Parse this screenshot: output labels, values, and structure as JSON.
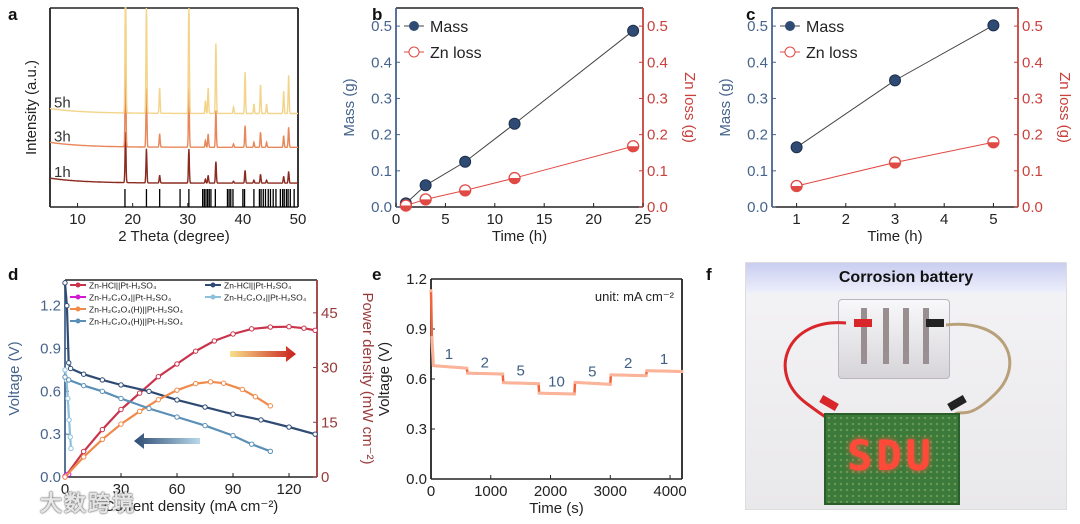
{
  "panel_labels": [
    "a",
    "b",
    "c",
    "d",
    "e",
    "f"
  ],
  "watermark": "大数跨境",
  "colors": {
    "navy": "#2f4b73",
    "axis_blue": "#46648c",
    "axis_red": "#c8413c",
    "red_series": "#e04a44",
    "xrd_1h": "#8b2a1f",
    "xrd_3h": "#e8875a",
    "xrd_5h": "#f3d48a",
    "power_red": "#c9344c",
    "power_orange": "#f08a4b",
    "light_blue": "#8cc0dc",
    "steel_blue": "#5a8fb8",
    "magenta": "#d21ad2",
    "step_orange": "#f0643c"
  },
  "chart_data": [
    {
      "id": "a",
      "type": "line",
      "xlabel": "2 Theta (degree)",
      "ylabel": "Intensity (a.u.)",
      "xlim": [
        5,
        50
      ],
      "ylim": [
        0,
        100
      ],
      "xticks": [
        10,
        20,
        30,
        40,
        50
      ],
      "series": [
        {
          "name": "1h",
          "offset": 12,
          "scale": 0.35
        },
        {
          "name": "3h",
          "offset": 30,
          "scale": 0.6
        },
        {
          "name": "5h",
          "offset": 47,
          "scale": 1.0
        }
      ],
      "peaks": [
        [
          18.7,
          52
        ],
        [
          22.5,
          35
        ],
        [
          24.9,
          8
        ],
        [
          30.2,
          35
        ],
        [
          33.2,
          4
        ],
        [
          33.7,
          8
        ],
        [
          35.1,
          22
        ],
        [
          38.3,
          2
        ],
        [
          40.4,
          13
        ],
        [
          42.0,
          3
        ],
        [
          43.2,
          9
        ],
        [
          44.3,
          3
        ],
        [
          47.4,
          7
        ],
        [
          48.3,
          12
        ]
      ],
      "reference_lines": [
        18.6,
        22.5,
        24.9,
        28.6,
        30.2,
        32.7,
        33.0,
        33.3,
        33.6,
        33.9,
        34.2,
        35.0,
        37.2,
        37.5,
        37.8,
        38.2,
        40.0,
        40.3,
        42.0,
        43.0,
        43.3,
        43.7,
        44.1,
        44.6,
        45.0,
        45.5,
        46.0,
        46.8,
        47.2,
        47.5,
        47.9,
        48.2,
        48.6,
        49.3
      ]
    },
    {
      "id": "b",
      "type": "line",
      "xlabel": "Time (h)",
      "ylabel": "Mass (g)",
      "y2label": "Zn loss (g)",
      "xlim": [
        0,
        25
      ],
      "ylim": [
        0,
        0.55
      ],
      "y2lim": [
        0,
        0.55
      ],
      "xticks": [
        0,
        5,
        10,
        15,
        20,
        25
      ],
      "yticks": [
        0.0,
        0.1,
        0.2,
        0.3,
        0.4,
        0.5
      ],
      "legend": "top-left",
      "x": [
        1,
        3,
        7,
        12,
        24
      ],
      "series": [
        {
          "name": "Mass",
          "values": [
            0.01,
            0.06,
            0.125,
            0.23,
            0.487
          ],
          "axis": "left"
        },
        {
          "name": "Zn loss",
          "values": [
            0.004,
            0.021,
            0.046,
            0.08,
            0.168
          ],
          "axis": "right"
        }
      ]
    },
    {
      "id": "c",
      "type": "line",
      "xlabel": "Time (h)",
      "ylabel": "Mass (g)",
      "y2label": "Zn loss (g)",
      "xlim": [
        0.5,
        5.5
      ],
      "ylim": [
        0,
        0.55
      ],
      "y2lim": [
        0,
        0.55
      ],
      "xticks": [
        1,
        2,
        3,
        4,
        5
      ],
      "yticks": [
        0.0,
        0.1,
        0.2,
        0.3,
        0.4,
        0.5
      ],
      "legend": "top-left",
      "x": [
        1,
        3,
        5
      ],
      "series": [
        {
          "name": "Mass",
          "values": [
            0.165,
            0.35,
            0.502
          ],
          "axis": "left"
        },
        {
          "name": "Zn loss",
          "values": [
            0.058,
            0.123,
            0.179
          ],
          "axis": "right"
        }
      ]
    },
    {
      "id": "d",
      "type": "line",
      "xlabel": "Current density (mA cm⁻²)",
      "ylabel": "Voltage (V)",
      "y2label": "Power density (mW cm⁻²)",
      "xlim": [
        0,
        135
      ],
      "ylim": [
        0,
        1.38
      ],
      "y2lim": [
        0,
        54
      ],
      "xticks": [
        0,
        30,
        60,
        90,
        120
      ],
      "yticks": [
        0.0,
        0.3,
        0.6,
        0.9,
        1.2
      ],
      "y2ticks": [
        0,
        15,
        30,
        45
      ],
      "legend": "top",
      "series": [
        {
          "name": "Zn-HCl||Pt-H₂SO₄",
          "axis": "right",
          "color_key": "power_red",
          "points": [
            [
              0,
              0
            ],
            [
              10,
              7
            ],
            [
              20,
              13
            ],
            [
              30,
              18.5
            ],
            [
              40,
              23
            ],
            [
              50,
              27.5
            ],
            [
              60,
              31
            ],
            [
              70,
              34.5
            ],
            [
              80,
              37.3
            ],
            [
              90,
              39.2
            ],
            [
              100,
              40.6
            ],
            [
              110,
              41.1
            ],
            [
              120,
              41.2
            ],
            [
              128,
              40.8
            ],
            [
              134,
              40.2
            ]
          ]
        },
        {
          "name": "Zn-HCl||Pt-H₂SO₄",
          "axis": "left",
          "color_key": "navy",
          "points": [
            [
              0,
              1.36
            ],
            [
              1,
              1.2
            ],
            [
              2,
              0.8
            ],
            [
              3,
              0.76
            ],
            [
              10,
              0.72
            ],
            [
              20,
              0.68
            ],
            [
              30,
              0.645
            ],
            [
              45,
              0.6
            ],
            [
              60,
              0.54
            ],
            [
              75,
              0.49
            ],
            [
              90,
              0.44
            ],
            [
              105,
              0.4
            ],
            [
              120,
              0.35
            ],
            [
              134,
              0.3
            ]
          ]
        },
        {
          "name": "Zn-H₂C₂O₄||Pt-H₂SO₄",
          "axis": "right",
          "color_key": "magenta",
          "points": [
            [
              0,
              0.2
            ],
            [
              1,
              0.6
            ],
            [
              2,
              0.8
            ]
          ]
        },
        {
          "name": "Zn-H₂C₂O₄||Pt-H₂SO₄",
          "axis": "left",
          "color_key": "light_blue",
          "points": [
            [
              0,
              0.75
            ],
            [
              0.8,
              0.68
            ],
            [
              1.5,
              0.55
            ],
            [
              2.2,
              0.4
            ],
            [
              2.8,
              0.28
            ],
            [
              3.2,
              0.2
            ]
          ]
        },
        {
          "name": "Zn-H₂C₂O₄(H)||Pt-H₂SO₄",
          "axis": "right",
          "color_key": "power_orange",
          "points": [
            [
              0,
              0
            ],
            [
              10,
              5.5
            ],
            [
              20,
              10.3
            ],
            [
              30,
              14.5
            ],
            [
              40,
              18
            ],
            [
              50,
              21.2
            ],
            [
              60,
              23.8
            ],
            [
              70,
              25.6
            ],
            [
              78,
              26.1
            ],
            [
              85,
              25.7
            ],
            [
              95,
              24
            ],
            [
              102,
              22
            ],
            [
              110,
              19.5
            ]
          ]
        },
        {
          "name": "Zn-H₂C₂O₄(H)||Pt-H₂SO₄",
          "axis": "left",
          "color_key": "steel_blue",
          "points": [
            [
              0,
              0.7
            ],
            [
              2,
              0.68
            ],
            [
              10,
              0.64
            ],
            [
              20,
              0.6
            ],
            [
              30,
              0.55
            ],
            [
              45,
              0.48
            ],
            [
              60,
              0.42
            ],
            [
              75,
              0.36
            ],
            [
              90,
              0.29
            ],
            [
              100,
              0.23
            ],
            [
              110,
              0.18
            ]
          ]
        }
      ]
    },
    {
      "id": "e",
      "type": "line",
      "xlabel": "Time (s)",
      "ylabel": "Voltage (V)",
      "xlim": [
        0,
        4200
      ],
      "ylim": [
        0,
        1.2
      ],
      "xticks": [
        0,
        1000,
        2000,
        3000,
        4000
      ],
      "yticks": [
        0.0,
        0.3,
        0.6,
        0.9,
        1.2
      ],
      "annotation": "unit: mA cm⁻²",
      "points": [
        [
          0,
          1.13
        ],
        [
          15,
          0.85
        ],
        [
          40,
          0.68
        ],
        [
          600,
          0.665
        ],
        [
          610,
          0.635
        ],
        [
          1200,
          0.63
        ],
        [
          1210,
          0.578
        ],
        [
          1800,
          0.572
        ],
        [
          1810,
          0.515
        ],
        [
          2400,
          0.51
        ],
        [
          2410,
          0.58
        ],
        [
          3000,
          0.568
        ],
        [
          3010,
          0.625
        ],
        [
          3600,
          0.62
        ],
        [
          3610,
          0.65
        ],
        [
          4200,
          0.645
        ]
      ],
      "step_labels": [
        {
          "x": 300,
          "y": 0.72,
          "text": "1"
        },
        {
          "x": 900,
          "y": 0.67,
          "text": "2"
        },
        {
          "x": 1500,
          "y": 0.62,
          "text": "5"
        },
        {
          "x": 2100,
          "y": 0.555,
          "text": "10"
        },
        {
          "x": 2700,
          "y": 0.615,
          "text": "5"
        },
        {
          "x": 3300,
          "y": 0.665,
          "text": "2"
        },
        {
          "x": 3900,
          "y": 0.69,
          "text": "1"
        }
      ]
    }
  ],
  "photo": {
    "title": "Corrosion battery",
    "led_text": "SDU"
  }
}
